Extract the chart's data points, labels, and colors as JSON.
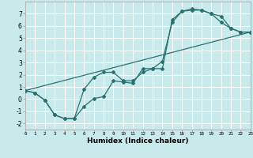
{
  "xlabel": "Humidex (Indice chaleur)",
  "background_color": "#c8eaeb",
  "grid_color": "#ffffff",
  "line_color": "#2a7070",
  "xlim": [
    0,
    23
  ],
  "ylim": [
    -2.5,
    8.0
  ],
  "xticks": [
    0,
    1,
    2,
    3,
    4,
    5,
    6,
    7,
    8,
    9,
    10,
    11,
    12,
    13,
    14,
    15,
    16,
    17,
    18,
    19,
    20,
    21,
    22,
    23
  ],
  "yticks": [
    -2,
    -1,
    0,
    1,
    2,
    3,
    4,
    5,
    6,
    7
  ],
  "line1_x": [
    0,
    1,
    2,
    3,
    4,
    5,
    6,
    7,
    8,
    9,
    10,
    11,
    12,
    13,
    14,
    15,
    16,
    17,
    18,
    19,
    20,
    21,
    22,
    23
  ],
  "line1_y": [
    0.7,
    0.5,
    -0.1,
    -1.3,
    -1.6,
    -1.6,
    -0.6,
    0.05,
    0.2,
    1.5,
    1.4,
    1.3,
    2.5,
    2.5,
    3.1,
    6.3,
    7.2,
    7.3,
    7.3,
    7.0,
    6.3,
    5.8,
    5.5,
    5.5
  ],
  "line2_x": [
    0,
    1,
    2,
    3,
    4,
    5,
    6,
    7,
    8,
    9,
    10,
    11,
    12,
    13,
    14,
    15,
    16,
    17,
    18,
    19,
    20,
    21,
    22,
    23
  ],
  "line2_y": [
    0.7,
    0.5,
    -0.1,
    -1.3,
    -1.6,
    -1.6,
    0.8,
    1.8,
    2.2,
    2.2,
    1.5,
    1.5,
    2.2,
    2.5,
    2.5,
    6.5,
    7.2,
    7.4,
    7.3,
    7.0,
    6.8,
    5.8,
    5.5,
    5.5
  ],
  "line3_x": [
    0,
    23
  ],
  "line3_y": [
    0.7,
    5.5
  ]
}
